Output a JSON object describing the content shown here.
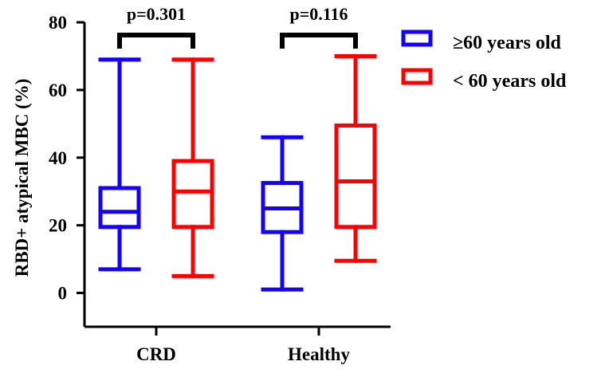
{
  "chart_data": {
    "type": "box",
    "ylabel": "RBD+ atypical MBC (%)",
    "ylim": [
      -10,
      80
    ],
    "y_ticks": [
      0,
      20,
      40,
      60,
      80
    ],
    "categories": [
      "CRD",
      "Healthy"
    ],
    "series": [
      {
        "name": "≥60 years old",
        "color": "#1400ff",
        "boxes": [
          {
            "category": "CRD",
            "min": 7,
            "q1": 19.5,
            "median": 24,
            "q3": 31,
            "max": 69
          },
          {
            "category": "Healthy",
            "min": 1,
            "q1": 18,
            "median": 25,
            "q3": 32.5,
            "max": 46
          }
        ]
      },
      {
        "name": "< 60 years old",
        "color": "#ff0000",
        "boxes": [
          {
            "category": "CRD",
            "min": 5,
            "q1": 19.5,
            "median": 30,
            "q3": 39,
            "max": 69
          },
          {
            "category": "Healthy",
            "min": 9.5,
            "q1": 19.5,
            "median": 33,
            "q3": 49.5,
            "max": 70
          }
        ]
      }
    ],
    "comparisons": [
      {
        "category": "CRD",
        "label": "p=0.301"
      },
      {
        "category": "Healthy",
        "label": "p=0.116"
      }
    ],
    "legend": {
      "position": "top-right",
      "items": [
        {
          "label": "≥60 years old",
          "color": "#1400ff",
          "icon": "outlined-box-icon"
        },
        {
          "label": "< 60 years old",
          "color": "#ff0000",
          "icon": "outlined-box-icon"
        }
      ]
    },
    "grid": false
  }
}
